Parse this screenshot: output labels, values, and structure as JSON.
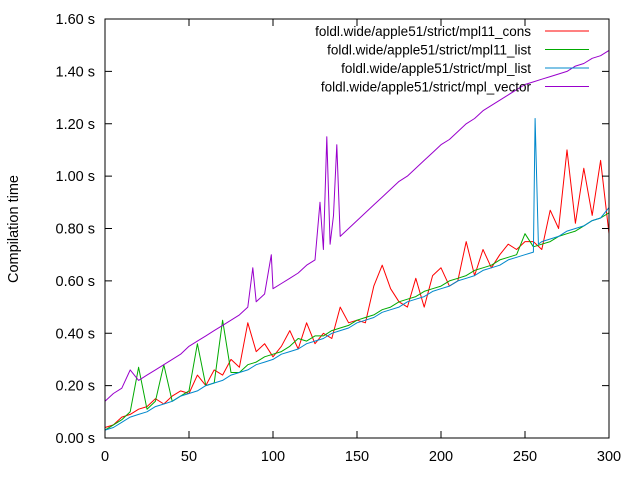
{
  "chart_data": {
    "type": "line",
    "title": "",
    "xlabel": "",
    "ylabel": "Compilation time",
    "xlim": [
      0,
      300
    ],
    "ylim": [
      0,
      1.6
    ],
    "grid": false,
    "legend_placement": "top-right",
    "x_ticks": [
      0,
      50,
      100,
      150,
      200,
      250,
      300
    ],
    "x_tick_labels": [
      "0",
      "50",
      "100",
      "150",
      "200",
      "250",
      "300"
    ],
    "y_ticks": [
      0,
      0.2,
      0.4,
      0.6,
      0.8,
      1.0,
      1.2,
      1.4,
      1.6
    ],
    "y_tick_labels": [
      "0.00 s",
      "0.20 s",
      "0.40 s",
      "0.60 s",
      "0.80 s",
      "1.00 s",
      "1.20 s",
      "1.40 s",
      "1.60 s"
    ],
    "series": [
      {
        "name": "foldl.wide/apple51/strict/mpl11_cons",
        "color": "#ff0000",
        "x": [
          0,
          5,
          10,
          15,
          20,
          25,
          30,
          35,
          40,
          45,
          50,
          55,
          60,
          65,
          70,
          75,
          80,
          85,
          90,
          95,
          100,
          105,
          110,
          115,
          120,
          125,
          130,
          135,
          140,
          145,
          150,
          155,
          160,
          165,
          170,
          175,
          180,
          185,
          190,
          195,
          200,
          205,
          210,
          215,
          220,
          225,
          230,
          235,
          240,
          245,
          250,
          255,
          260,
          265,
          270,
          275,
          280,
          285,
          290,
          295,
          300
        ],
        "y": [
          0.04,
          0.05,
          0.08,
          0.09,
          0.11,
          0.12,
          0.15,
          0.13,
          0.16,
          0.18,
          0.17,
          0.24,
          0.2,
          0.26,
          0.24,
          0.3,
          0.27,
          0.44,
          0.33,
          0.36,
          0.31,
          0.35,
          0.41,
          0.34,
          0.44,
          0.36,
          0.4,
          0.38,
          0.5,
          0.44,
          0.45,
          0.44,
          0.58,
          0.66,
          0.57,
          0.52,
          0.5,
          0.61,
          0.5,
          0.62,
          0.65,
          0.58,
          0.6,
          0.75,
          0.62,
          0.72,
          0.65,
          0.7,
          0.74,
          0.72,
          0.75,
          0.75,
          0.72,
          0.87,
          0.8,
          1.1,
          0.82,
          1.03,
          0.85,
          1.06,
          0.78
        ]
      },
      {
        "name": "foldl.wide/apple51/strict/mpl11_list",
        "color": "#00aa00",
        "x": [
          0,
          5,
          10,
          15,
          20,
          25,
          30,
          35,
          40,
          45,
          50,
          55,
          60,
          65,
          70,
          75,
          80,
          85,
          90,
          95,
          100,
          105,
          110,
          115,
          120,
          125,
          130,
          135,
          140,
          145,
          150,
          155,
          160,
          165,
          170,
          175,
          180,
          185,
          190,
          195,
          200,
          205,
          210,
          215,
          220,
          225,
          230,
          235,
          240,
          245,
          250,
          255,
          260,
          265,
          270,
          275,
          280,
          285,
          290,
          295,
          300
        ],
        "y": [
          0.03,
          0.05,
          0.07,
          0.1,
          0.27,
          0.11,
          0.14,
          0.28,
          0.14,
          0.16,
          0.18,
          0.36,
          0.2,
          0.21,
          0.45,
          0.25,
          0.25,
          0.28,
          0.29,
          0.31,
          0.32,
          0.33,
          0.35,
          0.38,
          0.37,
          0.39,
          0.39,
          0.41,
          0.42,
          0.43,
          0.45,
          0.46,
          0.47,
          0.49,
          0.5,
          0.52,
          0.53,
          0.54,
          0.56,
          0.57,
          0.58,
          0.6,
          0.61,
          0.62,
          0.64,
          0.65,
          0.66,
          0.68,
          0.69,
          0.7,
          0.78,
          0.73,
          0.74,
          0.75,
          0.77,
          0.78,
          0.79,
          0.81,
          0.83,
          0.84,
          0.86
        ]
      },
      {
        "name": "foldl.wide/apple51/strict/mpl_list",
        "color": "#0088cc",
        "x": [
          0,
          5,
          10,
          15,
          20,
          25,
          30,
          35,
          40,
          45,
          50,
          55,
          60,
          65,
          70,
          75,
          80,
          85,
          90,
          95,
          100,
          105,
          110,
          115,
          120,
          125,
          130,
          135,
          140,
          145,
          150,
          155,
          160,
          165,
          170,
          175,
          180,
          185,
          190,
          195,
          200,
          205,
          210,
          215,
          220,
          225,
          230,
          235,
          240,
          245,
          250,
          255,
          256,
          258,
          260,
          265,
          270,
          275,
          280,
          285,
          290,
          295,
          300
        ],
        "y": [
          0.03,
          0.04,
          0.06,
          0.08,
          0.09,
          0.1,
          0.12,
          0.13,
          0.14,
          0.16,
          0.17,
          0.18,
          0.2,
          0.21,
          0.22,
          0.24,
          0.25,
          0.26,
          0.28,
          0.29,
          0.3,
          0.32,
          0.33,
          0.34,
          0.36,
          0.37,
          0.38,
          0.4,
          0.41,
          0.42,
          0.44,
          0.45,
          0.46,
          0.48,
          0.49,
          0.5,
          0.52,
          0.53,
          0.54,
          0.56,
          0.57,
          0.58,
          0.6,
          0.61,
          0.62,
          0.64,
          0.65,
          0.66,
          0.68,
          0.69,
          0.7,
          0.71,
          1.22,
          0.74,
          0.75,
          0.76,
          0.77,
          0.79,
          0.8,
          0.81,
          0.83,
          0.84,
          0.88
        ]
      },
      {
        "name": "foldl.wide/apple51/strict/mpl_vector",
        "color": "#9900cc",
        "x": [
          0,
          5,
          10,
          15,
          20,
          25,
          30,
          35,
          40,
          45,
          50,
          55,
          60,
          65,
          70,
          75,
          80,
          85,
          88,
          90,
          95,
          99,
          100,
          105,
          110,
          115,
          120,
          125,
          128,
          130,
          132,
          134,
          136,
          138,
          140,
          145,
          150,
          155,
          160,
          165,
          170,
          175,
          180,
          185,
          190,
          195,
          200,
          205,
          210,
          215,
          220,
          225,
          230,
          235,
          240,
          245,
          250,
          255,
          260,
          265,
          270,
          275,
          280,
          285,
          290,
          295,
          300
        ],
        "y": [
          0.14,
          0.17,
          0.19,
          0.26,
          0.22,
          0.24,
          0.26,
          0.28,
          0.3,
          0.32,
          0.35,
          0.37,
          0.39,
          0.41,
          0.43,
          0.45,
          0.47,
          0.5,
          0.65,
          0.52,
          0.55,
          0.7,
          0.57,
          0.59,
          0.61,
          0.63,
          0.66,
          0.68,
          0.9,
          0.72,
          1.15,
          0.74,
          0.85,
          1.12,
          0.77,
          0.8,
          0.83,
          0.86,
          0.89,
          0.92,
          0.95,
          0.98,
          1.0,
          1.03,
          1.06,
          1.09,
          1.12,
          1.14,
          1.17,
          1.2,
          1.22,
          1.25,
          1.27,
          1.29,
          1.31,
          1.33,
          1.35,
          1.36,
          1.37,
          1.38,
          1.39,
          1.4,
          1.42,
          1.43,
          1.45,
          1.46,
          1.48
        ]
      }
    ]
  }
}
